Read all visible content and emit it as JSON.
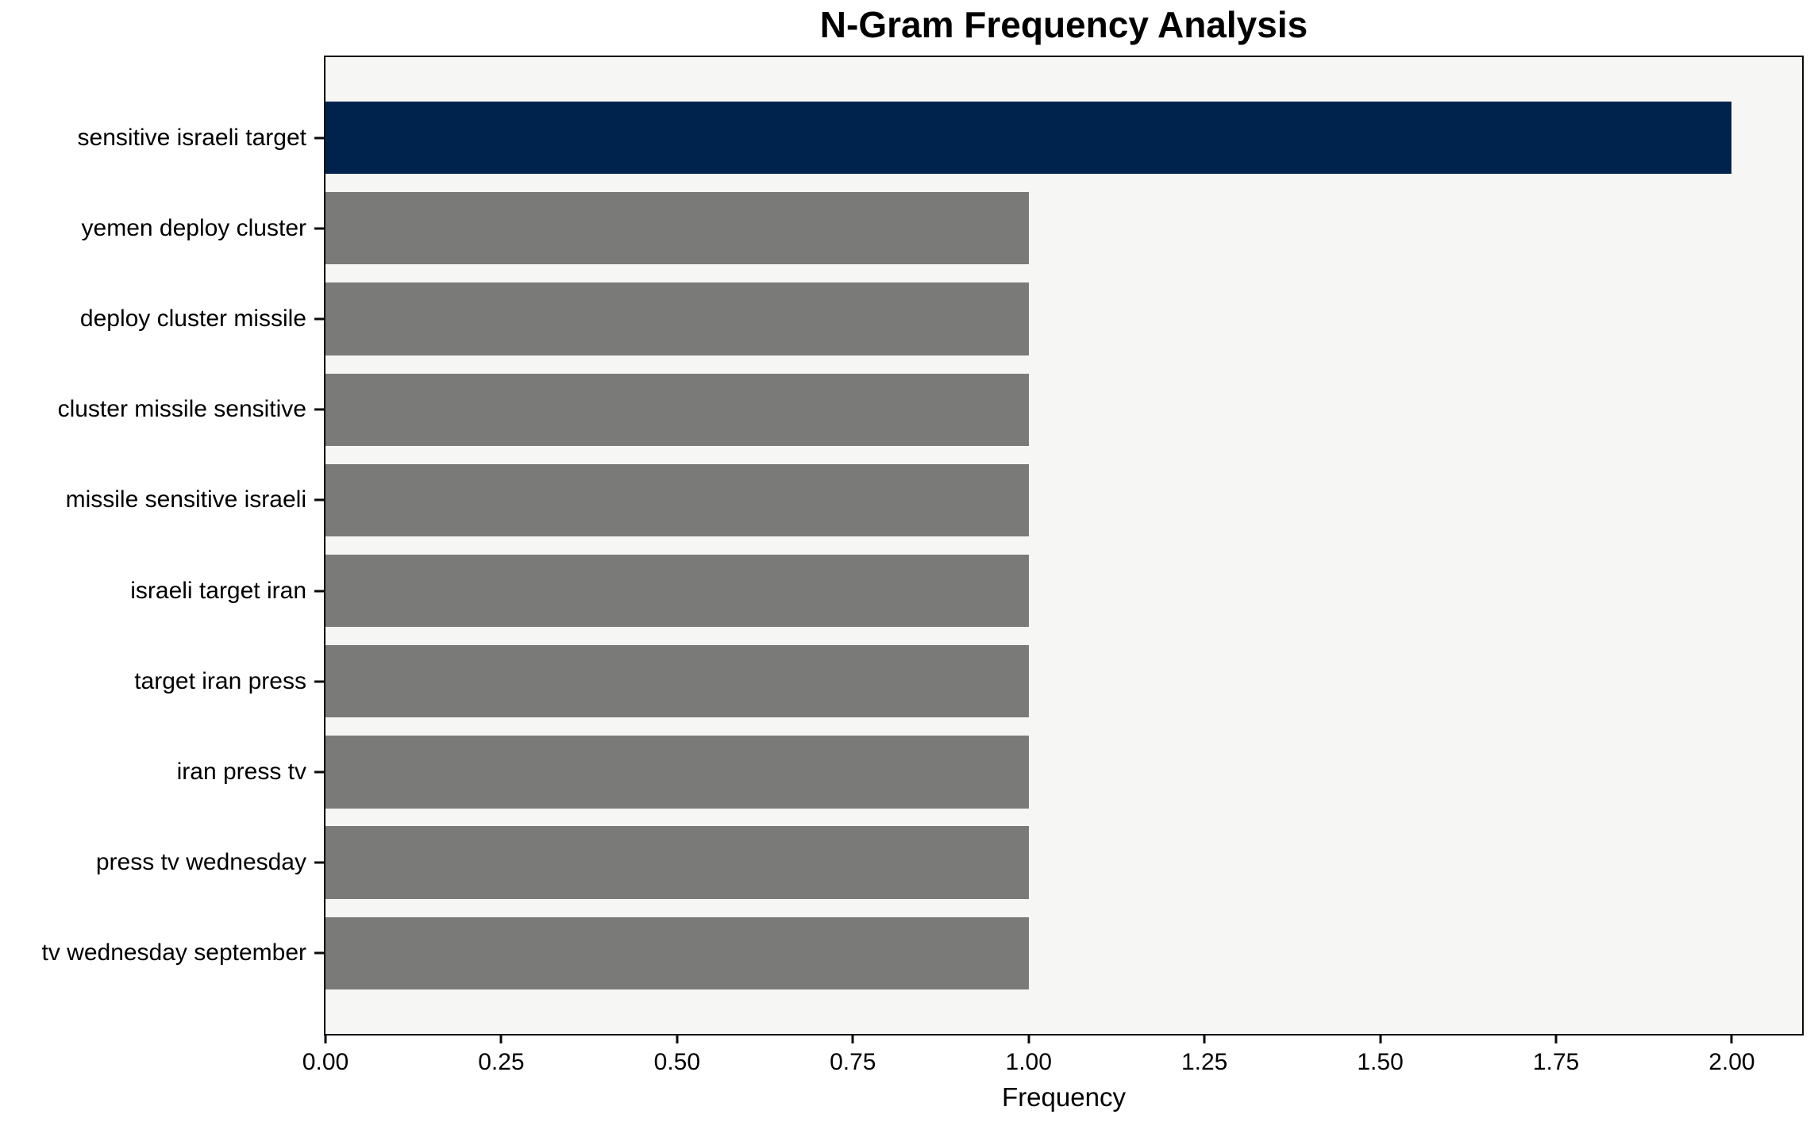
{
  "chart_data": {
    "type": "bar",
    "orientation": "horizontal",
    "title": "N-Gram Frequency Analysis",
    "xlabel": "Frequency",
    "ylabel": "",
    "categories": [
      "sensitive israeli target",
      "yemen deploy cluster",
      "deploy cluster missile",
      "cluster missile sensitive",
      "missile sensitive israeli",
      "israeli target iran",
      "target iran press",
      "iran press tv",
      "press tv wednesday",
      "tv wednesday september"
    ],
    "values": [
      2,
      1,
      1,
      1,
      1,
      1,
      1,
      1,
      1,
      1
    ],
    "xlim": [
      0,
      2.1
    ],
    "x_ticks": [
      0.0,
      0.25,
      0.5,
      0.75,
      1.0,
      1.25,
      1.5,
      1.75,
      2.0
    ],
    "x_tick_labels": [
      "0.00",
      "0.25",
      "0.50",
      "0.75",
      "1.00",
      "1.25",
      "1.50",
      "1.75",
      "2.00"
    ],
    "highlight_index": 0,
    "colors": {
      "bar_highlight": "#00234d",
      "bar_default": "#7a7a78",
      "plot_background": "#f6f6f5",
      "figure_background": "#ffffff",
      "text": "#000000"
    },
    "grid": false,
    "legend": null
  }
}
